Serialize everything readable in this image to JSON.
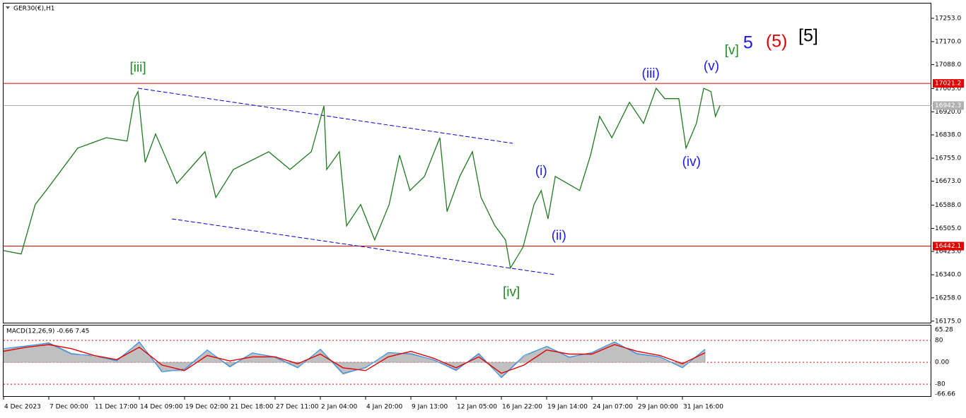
{
  "chart_data": [
    {
      "type": "line",
      "title": "GER30(€),H1",
      "xlim": [
        0,
        20.5
      ],
      "xticks": [
        {
          "value": 0,
          "label": "4 Dec 2023"
        },
        {
          "value": 1,
          "label": "7 Dec 00:00"
        },
        {
          "value": 2,
          "label": "11 Dec 17:00"
        },
        {
          "value": 3,
          "label": "14 Dec 09:00"
        },
        {
          "value": 4,
          "label": "19 Dec 02:00"
        },
        {
          "value": 5,
          "label": "21 Dec 18:00"
        },
        {
          "value": 6,
          "label": "27 Dec 11:00"
        },
        {
          "value": 7,
          "label": "2 Jan 04:00"
        },
        {
          "value": 8,
          "label": "4 Jan 20:00"
        },
        {
          "value": 9,
          "label": "9 Jan 13:00"
        },
        {
          "value": 10,
          "label": "12 Jan 05:00"
        },
        {
          "value": 11,
          "label": "16 Jan 22:00"
        },
        {
          "value": 12,
          "label": "19 Jan 14:00"
        },
        {
          "value": 13,
          "label": "24 Jan 07:00"
        },
        {
          "value": 14,
          "label": "29 Jan 00:00"
        },
        {
          "value": 15,
          "label": "31 Jan 16:00"
        }
      ],
      "ylim": [
        16167,
        17308
      ],
      "yticks": [
        {
          "value": 17253,
          "label": "17253.0"
        },
        {
          "value": 17170,
          "label": "17170.0"
        },
        {
          "value": 17088,
          "label": "17088.0"
        },
        {
          "value": 17003,
          "label": "17003.0"
        },
        {
          "value": 16920,
          "label": "16920.0"
        },
        {
          "value": 16838,
          "label": "16838.0"
        },
        {
          "value": 16755,
          "label": "16755.0"
        },
        {
          "value": 16673,
          "label": "16673.0"
        },
        {
          "value": 16588,
          "label": "16588.0"
        },
        {
          "value": 16505,
          "label": "16505.0"
        },
        {
          "value": 16423,
          "label": "16423.0"
        },
        {
          "value": 16340,
          "label": "16340.0"
        },
        {
          "value": 16258,
          "label": "16258.0"
        },
        {
          "value": 16175,
          "label": "16175.0"
        }
      ],
      "series": [
        {
          "color": "#1f7a1f",
          "x": [
            0,
            0.39,
            0.7,
            0.94,
            1.64,
            2.27,
            2.73,
            2.89,
            2.97,
            3.13,
            3.36,
            3.83,
            4.45,
            4.69,
            5.08,
            5.86,
            6.33,
            6.8,
            7.08,
            7.14,
            7.42,
            7.58,
            7.89,
            8.2,
            8.52,
            8.75,
            8.98,
            9.3,
            9.64,
            9.8,
            10.08,
            10.36,
            10.55,
            10.86,
            11.09,
            11.2,
            11.48,
            11.72,
            11.88,
            12.03,
            12.19,
            12.73,
            12.97,
            13.17,
            13.44,
            13.83,
            14.14,
            14.42,
            14.61,
            14.92,
            15.08,
            15.31,
            15.47,
            15.63,
            15.73,
            15.83
          ],
          "values": [
            16426,
            16414,
            16590,
            16640,
            16791,
            16828,
            16816,
            16967,
            16992,
            16740,
            16841,
            16665,
            16778,
            16615,
            16715,
            16778,
            16715,
            16778,
            16941,
            16715,
            16778,
            16514,
            16590,
            16464,
            16590,
            16766,
            16640,
            16690,
            16828,
            16565,
            16690,
            16778,
            16615,
            16514,
            16464,
            16364,
            16439,
            16590,
            16640,
            16539,
            16690,
            16640,
            16766,
            16904,
            16828,
            16954,
            16879,
            17004,
            16967,
            16967,
            16791,
            16879,
            17004,
            16992,
            16904,
            16942
          ]
        }
      ],
      "hlines": [
        {
          "value": 17021.2,
          "color": "#e00000"
        },
        {
          "value": 16942.3,
          "color": "#b0b0b0"
        },
        {
          "value": 16442.1,
          "color": "#e00000"
        }
      ],
      "trendlines": [
        {
          "x": [
            2.97,
            11.25
          ],
          "y": [
            17004,
            16808
          ],
          "color": "#0000cc"
        },
        {
          "x": [
            3.72,
            12.16
          ],
          "y": [
            16539,
            16341
          ],
          "color": "#0000cc"
        }
      ],
      "annotations": [
        {
          "text": "[iii]",
          "color": "#1f8a1f",
          "x": 2.97,
          "y": 17075
        },
        {
          "text": "[iv]",
          "color": "#1f8a1f",
          "x": 11.22,
          "y": 16276
        },
        {
          "text": "(i)",
          "color": "#1a1aee",
          "x": 11.88,
          "y": 16708
        },
        {
          "text": "(ii)",
          "color": "#1a1aee",
          "x": 12.27,
          "y": 16477
        },
        {
          "text": "(iii)",
          "color": "#1a1aee",
          "x": 14.3,
          "y": 17054
        },
        {
          "text": "(iv)",
          "color": "#1a1aee",
          "x": 15.2,
          "y": 16740
        },
        {
          "text": "(v)",
          "color": "#1a1aee",
          "x": 15.64,
          "y": 17080
        },
        {
          "text": "[v]",
          "color": "#1f8a1f",
          "x": 16.09,
          "y": 17137
        },
        {
          "text": "5",
          "color": "#1a1aee",
          "x": 16.45,
          "y": 17163
        },
        {
          "text": "(5)",
          "color": "#e00000",
          "x": 17.08,
          "y": 17168
        },
        {
          "text": "[5]",
          "color": "#000000",
          "x": 17.78,
          "y": 17188
        }
      ]
    },
    {
      "type": "macd",
      "title": "MACD(12,26,9) -0.66 7.45",
      "top_label": "65.28",
      "bottom_label": "-66.66",
      "xlim": [
        0,
        20.5
      ],
      "ylim": [
        -121,
        132
      ],
      "yticks": [
        80,
        {
          "value": 0,
          "label": "0.00"
        },
        -80
      ],
      "x": [
        0,
        0.5,
        1,
        1.5,
        2,
        2.5,
        3,
        3.5,
        4,
        4.5,
        5,
        5.5,
        6,
        6.5,
        7,
        7.5,
        8,
        8.5,
        9,
        9.5,
        10,
        10.5,
        11,
        11.5,
        12,
        12.5,
        13,
        13.5,
        14,
        14.5,
        15,
        15.5
      ],
      "series": [
        {
          "name": "histogram",
          "color": "#c0c0c0",
          "values": [
            46,
            59,
            72,
            34,
            21,
            8,
            72,
            -31,
            -31,
            46,
            -18,
            34,
            21,
            -18,
            46,
            -44,
            -18,
            34,
            34,
            8,
            -31,
            34,
            -57,
            21,
            59,
            21,
            34,
            72,
            34,
            21,
            -18,
            46
          ]
        },
        {
          "name": "macd",
          "color": "#1e8fff",
          "values": [
            50,
            60,
            70,
            30,
            25,
            5,
            75,
            -35,
            -25,
            45,
            -15,
            35,
            18,
            -20,
            48,
            -40,
            -20,
            36,
            30,
            10,
            -28,
            30,
            -55,
            25,
            58,
            18,
            36,
            75,
            30,
            20,
            -20,
            48
          ]
        },
        {
          "name": "signal",
          "color": "#e00000",
          "values": [
            40,
            55,
            65,
            50,
            25,
            10,
            55,
            -10,
            -30,
            25,
            5,
            20,
            20,
            -5,
            30,
            -20,
            -30,
            20,
            40,
            15,
            -20,
            20,
            -40,
            -10,
            45,
            30,
            30,
            65,
            40,
            25,
            -5,
            35
          ]
        }
      ]
    }
  ]
}
